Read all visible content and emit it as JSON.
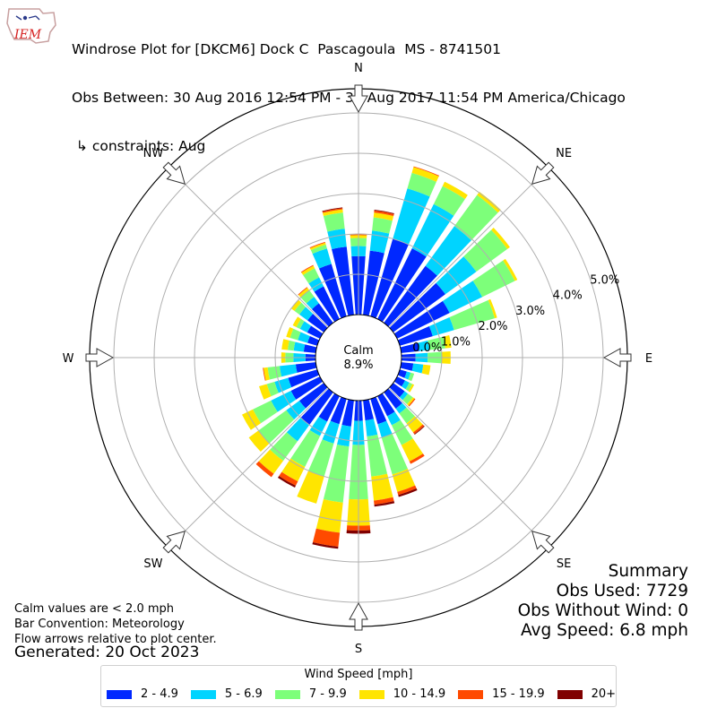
{
  "header": {
    "logo_text": "IEM",
    "title_line1": "Windrose Plot for [DKCM6] Dock C  Pascagoula  MS - 8741501",
    "title_line2": "Obs Between: 30 Aug 2016 12:54 PM - 31 Aug 2017 11:54 PM America/Chicago",
    "title_line3": " ↳ constraints: Aug"
  },
  "calm": {
    "label": "Calm",
    "value": "8.9%"
  },
  "notes": {
    "line1": "Calm values are < 2.0 mph",
    "line2": "Bar Convention: Meteorology",
    "line3": "Flow arrows relative to plot center."
  },
  "generated": "Generated: 20 Oct 2023",
  "summary": {
    "title": "Summary",
    "obs_used": "Obs Used: 7729",
    "obs_without_wind": "Obs Without Wind: 0",
    "avg_speed": "Avg Speed: 6.8 mph"
  },
  "legend": {
    "title": "Wind Speed [mph]",
    "items": [
      {
        "label": "2 - 4.9",
        "color": "#0028ff"
      },
      {
        "label": "5 - 6.9",
        "color": "#00d4ff"
      },
      {
        "label": "7 - 9.9",
        "color": "#7dff7a"
      },
      {
        "label": "10 - 14.9",
        "color": "#ffe500"
      },
      {
        "label": "15 - 19.9",
        "color": "#ff4a00"
      },
      {
        "label": "20+",
        "color": "#800000"
      }
    ]
  },
  "chart_data": {
    "type": "windrose",
    "units": "percent of observations",
    "direction_labels": [
      "N",
      "NE",
      "E",
      "SE",
      "S",
      "SW",
      "W",
      "NW"
    ],
    "radial_ticks": [
      "0.0%",
      "1.0%",
      "2.0%",
      "3.0%",
      "4.0%",
      "5.0%"
    ],
    "rmax": 5.6,
    "bin_width_deg": 10,
    "bins": [
      {
        "dir": 0,
        "values": [
          1.45,
          0.25,
          0.2,
          0.07,
          0.02,
          0.0
        ]
      },
      {
        "dir": 10,
        "values": [
          1.6,
          0.5,
          0.33,
          0.12,
          0.05,
          0.02
        ]
      },
      {
        "dir": 20,
        "values": [
          2.0,
          1.3,
          0.4,
          0.15,
          0.02,
          0.0
        ]
      },
      {
        "dir": 30,
        "values": [
          1.95,
          1.22,
          0.5,
          0.12,
          0.0,
          0.0
        ]
      },
      {
        "dir": 40,
        "values": [
          1.75,
          1.22,
          0.95,
          0.1,
          0.0,
          0.0
        ]
      },
      {
        "dir": 50,
        "values": [
          1.6,
          0.95,
          0.95,
          0.08,
          0.0,
          0.0
        ]
      },
      {
        "dir": 60,
        "values": [
          1.45,
          0.9,
          0.9,
          0.07,
          0.0,
          0.0
        ]
      },
      {
        "dir": 70,
        "values": [
          0.85,
          0.55,
          1.05,
          0.06,
          0.0,
          0.0
        ]
      },
      {
        "dir": 80,
        "values": [
          0.45,
          0.25,
          0.4,
          0.15,
          0.0,
          0.0
        ]
      },
      {
        "dir": 90,
        "values": [
          0.35,
          0.3,
          0.35,
          0.22,
          0.0,
          0.0
        ]
      },
      {
        "dir": 100,
        "values": [
          0.3,
          0.25,
          0.0,
          0.18,
          0.0,
          0.0
        ]
      },
      {
        "dir": 110,
        "values": [
          0.18,
          0.1,
          0.09,
          0.0,
          0.0,
          0.0
        ]
      },
      {
        "dir": 120,
        "values": [
          0.22,
          0.12,
          0.08,
          0.05,
          0.0,
          0.0
        ]
      },
      {
        "dir": 130,
        "values": [
          0.35,
          0.1,
          0.15,
          0.05,
          0.03,
          0.0
        ]
      },
      {
        "dir": 140,
        "values": [
          0.5,
          0.15,
          0.3,
          0.28,
          0.05,
          0.02
        ]
      },
      {
        "dir": 150,
        "values": [
          0.55,
          0.25,
          0.55,
          0.45,
          0.07,
          0.0
        ]
      },
      {
        "dir": 160,
        "values": [
          0.65,
          0.35,
          0.95,
          0.45,
          0.08,
          0.05
        ]
      },
      {
        "dir": 170,
        "values": [
          0.5,
          0.4,
          1.0,
          0.6,
          0.1,
          0.05
        ]
      },
      {
        "dir": 180,
        "values": [
          0.5,
          0.6,
          1.35,
          0.65,
          0.12,
          0.08
        ]
      },
      {
        "dir": 190,
        "values": [
          0.65,
          0.5,
          1.4,
          0.75,
          0.35,
          0.05
        ]
      },
      {
        "dir": 200,
        "values": [
          0.65,
          0.5,
          0.85,
          0.7,
          0.0,
          0.0
        ]
      },
      {
        "dir": 210,
        "values": [
          0.7,
          0.4,
          0.85,
          0.4,
          0.12,
          0.05
        ]
      },
      {
        "dir": 220,
        "values": [
          1.0,
          0.5,
          0.6,
          0.4,
          0.1,
          0.0
        ]
      },
      {
        "dir": 230,
        "values": [
          0.75,
          0.4,
          0.85,
          0.3,
          0.0,
          0.0
        ]
      },
      {
        "dir": 240,
        "values": [
          0.8,
          0.55,
          0.5,
          0.3,
          0.0,
          0.0
        ]
      },
      {
        "dir": 250,
        "values": [
          0.75,
          0.35,
          0.2,
          0.2,
          0.0,
          0.0
        ]
      },
      {
        "dir": 260,
        "values": [
          0.5,
          0.4,
          0.3,
          0.1,
          0.02,
          0.0
        ]
      },
      {
        "dir": 270,
        "values": [
          0.25,
          0.3,
          0.2,
          0.1,
          0.0,
          0.0
        ]
      },
      {
        "dir": 280,
        "values": [
          0.3,
          0.25,
          0.15,
          0.15,
          0.0,
          0.0
        ]
      },
      {
        "dir": 290,
        "values": [
          0.25,
          0.25,
          0.2,
          0.1,
          0.0,
          0.0
        ]
      },
      {
        "dir": 300,
        "values": [
          0.35,
          0.2,
          0.1,
          0.1,
          0.0,
          0.0
        ]
      },
      {
        "dir": 310,
        "values": [
          0.5,
          0.25,
          0.15,
          0.1,
          0.0,
          0.0
        ]
      },
      {
        "dir": 320,
        "values": [
          0.6,
          0.2,
          0.2,
          0.08,
          0.02,
          0.0
        ]
      },
      {
        "dir": 330,
        "values": [
          0.9,
          0.25,
          0.25,
          0.07,
          0.02,
          0.0
        ]
      },
      {
        "dir": 340,
        "values": [
          1.35,
          0.4,
          0.1,
          0.05,
          0.02,
          0.0
        ]
      },
      {
        "dir": 350,
        "values": [
          1.7,
          0.45,
          0.4,
          0.08,
          0.03,
          0.02
        ]
      }
    ]
  }
}
